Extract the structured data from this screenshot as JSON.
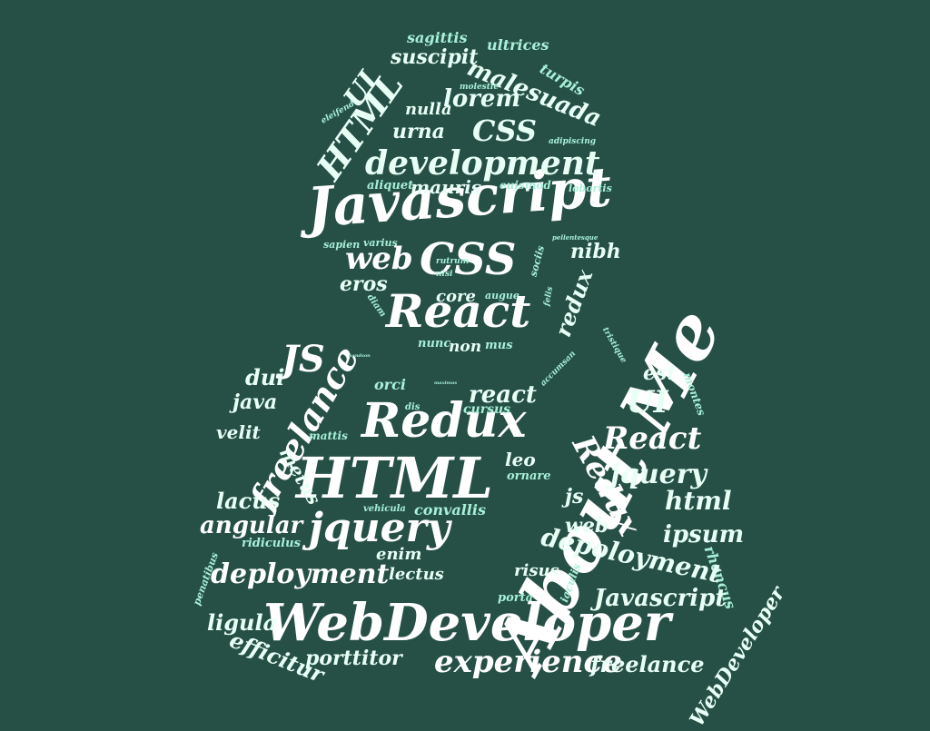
{
  "word_cloud": {
    "words": [
      "Javascript",
      "development",
      "React",
      "CSS",
      "CSS",
      "HTML",
      "UI",
      "malesuada",
      "lorem",
      "urna",
      "nulla",
      "suscipit",
      "sagittis",
      "ultrices",
      "turpis",
      "molestie",
      "eleifend",
      "adipiscing",
      "aliquet",
      "mauris",
      "euismod",
      "lobortis",
      "sapien",
      "varius",
      "web",
      "rutrum",
      "nisi",
      "pellentesque",
      "sociis",
      "nibh",
      "eros",
      "core",
      "augue",
      "felis",
      "redux",
      "diam",
      "nunc",
      "non",
      "mus",
      "About Me",
      "WebDeveloper",
      "HTML",
      "Redux",
      "freelance",
      "JS",
      "dui",
      "java",
      "velit",
      "orci",
      "react",
      "cursus",
      "UI",
      "React",
      "est",
      "montes",
      "tristique",
      "accumsan",
      "dis",
      "maximus",
      "mattis",
      "Redux",
      "jquery",
      "html",
      "js",
      "leo",
      "ornare",
      "metus",
      "lacus",
      "vehicula",
      "convallis",
      "angular",
      "jquery",
      "web",
      "ipsum",
      "rhoncus",
      "ridiculus",
      "enim",
      "depoloyment",
      "deployment",
      "lectus",
      "risus",
      "iaculis",
      "penatibus",
      "porta",
      "Javascript",
      "ligula",
      "WebDeveloper",
      "efficitur",
      "porttitor",
      "experience",
      "freelance",
      "handson",
      "facilisi"
    ]
  }
}
